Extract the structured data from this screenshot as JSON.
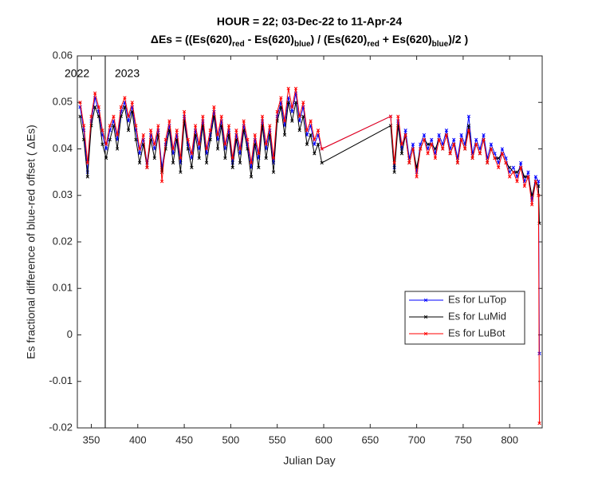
{
  "chart_data": {
    "type": "line",
    "title": "HOUR = 22; 03-Dec-22 to 11-Apr-24",
    "title_parts": [
      "ΔEs = ((Es(620)",
      "red",
      " - Es(620)",
      "blue",
      ") / (Es(620)",
      "red",
      " + Es(620)",
      "blue",
      ")/2  )"
    ],
    "xlabel": "Julian Day",
    "ylabel": "Es fractional difference of blue-red offset (  ΔEs)",
    "annotations": [
      "2022",
      "2023"
    ],
    "year_divider": 365,
    "xlim": [
      335,
      835
    ],
    "xticks": [
      350,
      400,
      450,
      500,
      550,
      600,
      650,
      700,
      750,
      800
    ],
    "ylim": [
      -0.02,
      0.06
    ],
    "yticks": [
      -0.02,
      -0.01,
      0,
      0.01,
      0.02,
      0.03,
      0.04,
      0.05,
      0.06
    ],
    "legend": "east",
    "x": [
      338,
      342,
      346,
      350,
      354,
      358,
      362,
      366,
      370,
      374,
      378,
      382,
      386,
      390,
      394,
      398,
      402,
      406,
      410,
      414,
      418,
      422,
      426,
      430,
      434,
      438,
      442,
      446,
      450,
      454,
      458,
      462,
      466,
      470,
      474,
      478,
      482,
      486,
      490,
      494,
      498,
      502,
      506,
      510,
      514,
      518,
      522,
      526,
      530,
      534,
      538,
      542,
      546,
      550,
      554,
      558,
      562,
      566,
      570,
      574,
      578,
      582,
      586,
      590,
      594,
      598,
      672,
      676,
      680,
      684,
      688,
      692,
      696,
      700,
      704,
      708,
      712,
      716,
      720,
      724,
      728,
      732,
      736,
      740,
      744,
      748,
      752,
      756,
      760,
      764,
      768,
      772,
      776,
      780,
      784,
      788,
      792,
      796,
      800,
      804,
      808,
      812,
      816,
      820,
      824,
      828,
      831,
      832
    ],
    "series": [
      {
        "name": "Es for LuTop",
        "color": "#0000ff",
        "values": [
          0.049,
          0.044,
          0.035,
          0.046,
          0.051,
          0.048,
          0.043,
          0.04,
          0.044,
          0.046,
          0.042,
          0.048,
          0.05,
          0.046,
          0.049,
          0.044,
          0.039,
          0.042,
          0.037,
          0.043,
          0.04,
          0.044,
          0.036,
          0.041,
          0.045,
          0.039,
          0.043,
          0.037,
          0.047,
          0.041,
          0.038,
          0.044,
          0.04,
          0.046,
          0.039,
          0.043,
          0.048,
          0.042,
          0.046,
          0.04,
          0.044,
          0.037,
          0.043,
          0.039,
          0.045,
          0.041,
          0.036,
          0.042,
          0.038,
          0.046,
          0.04,
          0.044,
          0.037,
          0.047,
          0.05,
          0.045,
          0.051,
          0.048,
          0.052,
          0.046,
          0.049,
          0.043,
          0.045,
          0.041,
          0.043,
          0.04,
          0.047,
          0.036,
          0.046,
          0.04,
          0.044,
          0.038,
          0.041,
          0.035,
          0.041,
          0.043,
          0.04,
          0.042,
          0.039,
          0.043,
          0.041,
          0.044,
          0.04,
          0.042,
          0.038,
          0.043,
          0.041,
          0.047,
          0.039,
          0.042,
          0.04,
          0.043,
          0.038,
          0.041,
          0.039,
          0.037,
          0.04,
          0.038,
          0.035,
          0.036,
          0.034,
          0.037,
          0.033,
          0.035,
          0.029,
          0.034,
          0.033,
          -0.004
        ]
      },
      {
        "name": "Es for LuMid",
        "color": "#000000",
        "values": [
          0.047,
          0.042,
          0.034,
          0.045,
          0.049,
          0.047,
          0.041,
          0.038,
          0.042,
          0.045,
          0.04,
          0.047,
          0.049,
          0.044,
          0.048,
          0.042,
          0.037,
          0.041,
          0.036,
          0.042,
          0.038,
          0.043,
          0.035,
          0.04,
          0.044,
          0.037,
          0.042,
          0.035,
          0.046,
          0.04,
          0.036,
          0.043,
          0.038,
          0.045,
          0.037,
          0.042,
          0.047,
          0.04,
          0.045,
          0.038,
          0.043,
          0.036,
          0.042,
          0.037,
          0.044,
          0.04,
          0.034,
          0.041,
          0.036,
          0.045,
          0.038,
          0.043,
          0.035,
          0.046,
          0.049,
          0.043,
          0.05,
          0.046,
          0.05,
          0.044,
          0.047,
          0.041,
          0.043,
          0.039,
          0.041,
          0.037,
          0.045,
          0.035,
          0.045,
          0.039,
          0.043,
          0.037,
          0.04,
          0.036,
          0.04,
          0.042,
          0.041,
          0.041,
          0.04,
          0.042,
          0.04,
          0.043,
          0.039,
          0.041,
          0.037,
          0.042,
          0.04,
          0.045,
          0.038,
          0.041,
          0.039,
          0.042,
          0.037,
          0.04,
          0.038,
          0.038,
          0.039,
          0.037,
          0.036,
          0.035,
          0.035,
          0.036,
          0.034,
          0.034,
          0.03,
          0.033,
          0.032,
          0.024
        ]
      },
      {
        "name": "Es for LuBot",
        "color": "#ff0000",
        "values": [
          0.05,
          0.045,
          0.037,
          0.047,
          0.052,
          0.049,
          0.044,
          0.041,
          0.045,
          0.047,
          0.043,
          0.049,
          0.051,
          0.047,
          0.05,
          0.045,
          0.04,
          0.043,
          0.036,
          0.044,
          0.041,
          0.045,
          0.033,
          0.042,
          0.046,
          0.04,
          0.044,
          0.038,
          0.048,
          0.042,
          0.039,
          0.045,
          0.041,
          0.047,
          0.04,
          0.044,
          0.049,
          0.043,
          0.047,
          0.041,
          0.045,
          0.038,
          0.044,
          0.04,
          0.046,
          0.042,
          0.037,
          0.043,
          0.039,
          0.047,
          0.041,
          0.045,
          0.038,
          0.048,
          0.051,
          0.046,
          0.053,
          0.049,
          0.053,
          0.047,
          0.05,
          0.044,
          0.046,
          0.042,
          0.044,
          0.04,
          0.047,
          0.037,
          0.047,
          0.041,
          0.043,
          0.037,
          0.04,
          0.034,
          0.04,
          0.042,
          0.039,
          0.041,
          0.038,
          0.042,
          0.04,
          0.043,
          0.039,
          0.041,
          0.037,
          0.042,
          0.04,
          0.044,
          0.038,
          0.041,
          0.039,
          0.042,
          0.037,
          0.04,
          0.038,
          0.036,
          0.039,
          0.037,
          0.034,
          0.035,
          0.033,
          0.036,
          0.032,
          0.034,
          0.028,
          0.033,
          0.03,
          -0.019
        ]
      }
    ]
  }
}
